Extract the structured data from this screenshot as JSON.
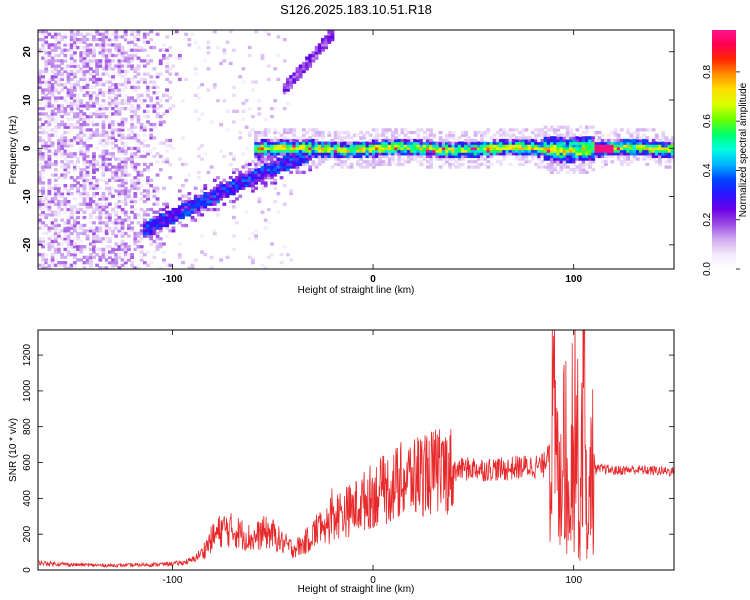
{
  "title": "S126.2025.183.10.51.R18",
  "colors": {
    "snr_line": "#e8292b",
    "colormap": [
      "#ffffff",
      "#f3e9fb",
      "#cfa9ef",
      "#9c4ae3",
      "#6a00e6",
      "#2a14ff",
      "#0046ff",
      "#00b4ff",
      "#00ffe0",
      "#00ff6a",
      "#6cff00",
      "#d8ff00",
      "#ffe000",
      "#ff9000",
      "#ff2a00",
      "#ff0050",
      "#ff1493"
    ]
  },
  "chart_data": [
    {
      "type": "heatmap",
      "xlabel": "Height of straight line (km)",
      "ylabel": "Frequency (Hz)",
      "xlim": [
        -167,
        150
      ],
      "ylim": [
        -25,
        24.5
      ],
      "x_ticks": [
        -100,
        0,
        100
      ],
      "y_ticks": [
        20,
        10,
        0,
        -10,
        -20
      ],
      "colorbar": {
        "label": "Normalized spectral amplitude",
        "range": [
          0.0,
          0.97
        ],
        "ticks": [
          0.0,
          0.2,
          0.4,
          0.6,
          0.8
        ]
      },
      "features": [
        {
          "name": "main_tone",
          "x_range": [
            -60,
            150
          ],
          "frequency_hz": 0,
          "amplitude": 0.55
        },
        {
          "name": "branch_upper",
          "points": [
            [
              -45,
              12
            ],
            [
              -30,
              19
            ],
            [
              -20,
              24
            ]
          ]
        },
        {
          "name": "branch_lower",
          "points": [
            [
              -115,
              -17
            ],
            [
              -90,
              -12
            ],
            [
              -70,
              -8
            ],
            [
              -50,
              -4
            ],
            [
              -30,
              -1
            ]
          ]
        },
        {
          "name": "noise_region",
          "x_range": [
            -167,
            -95
          ],
          "frequency_range": [
            -25,
            24.5
          ]
        }
      ]
    },
    {
      "type": "line",
      "xlabel": "Height of straight line (km)",
      "ylabel": "SNR (10 * v/v)",
      "xlim": [
        -167,
        150
      ],
      "ylim": [
        0,
        1340
      ],
      "x_ticks": [
        -100,
        0,
        100
      ],
      "y_ticks": [
        0,
        200,
        400,
        600,
        800,
        1000,
        1200
      ],
      "series": [
        {
          "x": [
            -167,
            -150,
            -130,
            -110,
            -100,
            -95,
            -90,
            -85,
            -80,
            -75,
            -70,
            -65,
            -60,
            -55,
            -50,
            -45,
            -40,
            -35,
            -30,
            -25,
            -20,
            -15,
            -10,
            -5,
            0,
            5,
            10,
            15,
            20,
            25,
            30,
            35,
            40,
            45,
            50,
            55,
            60,
            65,
            70,
            75,
            80,
            85,
            90,
            93,
            95,
            97,
            99,
            101,
            103,
            105,
            107,
            109,
            111,
            115,
            120,
            130,
            140,
            150
          ],
          "values": [
            40,
            30,
            25,
            30,
            35,
            40,
            55,
            100,
            180,
            230,
            220,
            200,
            170,
            210,
            200,
            150,
            120,
            140,
            200,
            260,
            300,
            320,
            340,
            380,
            420,
            440,
            470,
            500,
            520,
            540,
            545,
            555,
            560,
            560,
            570,
            560,
            565,
            560,
            570,
            575,
            580,
            580,
            800,
            400,
            1050,
            300,
            750,
            1000,
            250,
            1300,
            100,
            700,
            560,
            565,
            555,
            560,
            555,
            550
          ]
        }
      ]
    }
  ]
}
